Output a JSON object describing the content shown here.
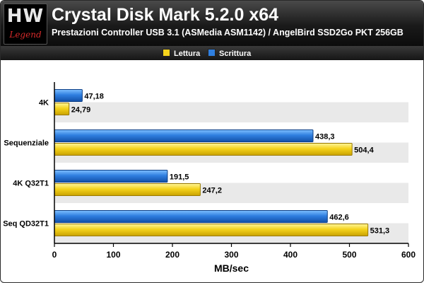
{
  "logo": {
    "mark": "HW",
    "sub": "Legend"
  },
  "header": {
    "title": "Crystal Disk Mark 5.2.0 x64",
    "subtitle": "Prestazioni Controller USB 3.1 (ASMedia ASM1142) / AngelBird SSD2Go PKT 256GB"
  },
  "colors": {
    "lettura": "#f5d31c",
    "scrittura": "#2f7fe0",
    "band": "#e9e9e9"
  },
  "chart_data": {
    "type": "bar",
    "orientation": "horizontal",
    "title": "Crystal Disk Mark 5.2.0 x64",
    "subtitle": "Prestazioni Controller USB 3.1 (ASMedia ASM1142) / AngelBird SSD2Go PKT 256GB",
    "xlabel": "MB/sec",
    "ylabel": "",
    "xlim": [
      0,
      600
    ],
    "ticks": [
      "0",
      "100",
      "200",
      "300",
      "400",
      "500",
      "600"
    ],
    "tick_values": [
      0,
      100,
      200,
      300,
      400,
      500,
      600
    ],
    "legend_position": "top",
    "grid": false,
    "categories": [
      "4K",
      "Sequenziale",
      "4K Q32T1",
      "Seq QD32T1"
    ],
    "series": [
      {
        "name": "Scrittura",
        "values": [
          47.18,
          438.3,
          191.5,
          462.6
        ],
        "labels": [
          "47,18",
          "438,3",
          "191,5",
          "462,6"
        ]
      },
      {
        "name": "Lettura",
        "values": [
          24.79,
          504.4,
          247.2,
          531.3
        ],
        "labels": [
          "24,79",
          "504,4",
          "247,2",
          "531,3"
        ]
      }
    ]
  }
}
